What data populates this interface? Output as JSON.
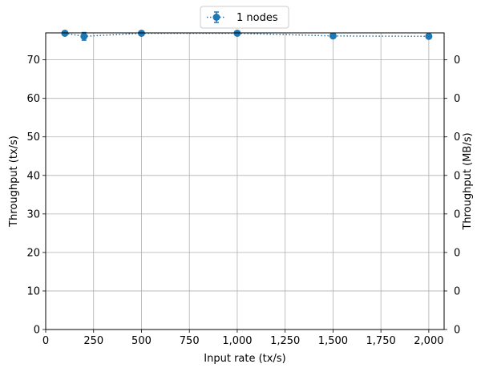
{
  "chart_data": {
    "type": "line",
    "title": "",
    "xlabel": "Input rate (tx/s)",
    "ylabel": "Throughput (tx/s)",
    "y2label": "Throughput (MB/s)",
    "xlim": [
      0,
      2080
    ],
    "ylim": [
      0,
      77
    ],
    "grid": true,
    "legend_position": "top-center",
    "x_ticks": [
      0,
      250,
      500,
      750,
      1000,
      1250,
      1500,
      1750,
      2000
    ],
    "x_tick_labels": [
      "0",
      "250",
      "500",
      "750",
      "1,000",
      "1,250",
      "1,500",
      "1,750",
      "2,000"
    ],
    "y_ticks": [
      0,
      10,
      20,
      30,
      40,
      50,
      60,
      70
    ],
    "y_tick_labels": [
      "0",
      "10",
      "20",
      "30",
      "40",
      "50",
      "60",
      "70"
    ],
    "y2_tick_labels": [
      "0",
      "0",
      "0",
      "0",
      "0",
      "0",
      "0",
      "0"
    ],
    "series": [
      {
        "name": "1 nodes",
        "color": "#1f77b4",
        "line_style": "dotted",
        "marker": "circle",
        "x": [
          100,
          200,
          500,
          1000,
          1500,
          2000
        ],
        "y": [
          76.9,
          76.1,
          76.9,
          76.9,
          76.2,
          76.1
        ],
        "yerr": [
          0.3,
          1.0,
          0.2,
          0.2,
          0.2,
          0.2
        ]
      }
    ]
  }
}
